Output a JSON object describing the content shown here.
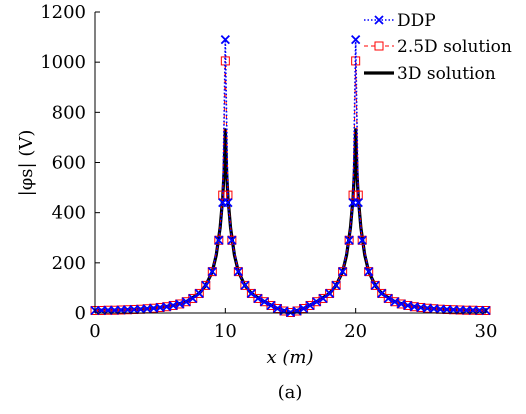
{
  "chart_data": {
    "type": "line",
    "xlabel": "x (m)",
    "ylabel": "|φs| (V)",
    "caption": "(a)",
    "xlim": [
      0,
      30
    ],
    "ylim": [
      0,
      1200
    ],
    "xticks": [
      0,
      10,
      20,
      30
    ],
    "yticks": [
      0,
      200,
      400,
      600,
      800,
      1000,
      1200
    ],
    "grid": false,
    "legend_placement": "top-right",
    "colors": {
      "ddp": "#0000ff",
      "solution_2_5d": "#ff0000",
      "solution_3d": "#000000"
    },
    "series": [
      {
        "name": "DDP",
        "style": "dotted-x-markers",
        "x": [
          0,
          0.5,
          1,
          1.5,
          2,
          2.5,
          3,
          3.5,
          4,
          4.5,
          5,
          5.5,
          6,
          6.5,
          7,
          7.5,
          8,
          8.5,
          9,
          9.5,
          9.8,
          10,
          10.2,
          10.5,
          11,
          11.5,
          12,
          12.5,
          13,
          13.5,
          14,
          14.5,
          15,
          15.5,
          16,
          16.5,
          17,
          17.5,
          18,
          18.5,
          19,
          19.5,
          19.8,
          20,
          20.2,
          20.5,
          21,
          21.5,
          22,
          22.5,
          23,
          23.5,
          24,
          24.5,
          25,
          25.5,
          26,
          26.5,
          27,
          27.5,
          28,
          28.5,
          29,
          29.5,
          30
        ],
        "y": [
          10,
          10,
          11,
          11,
          12,
          13,
          14,
          15,
          17,
          19,
          22,
          25,
          30,
          36,
          45,
          58,
          78,
          110,
          165,
          290,
          440,
          1090,
          440,
          290,
          165,
          110,
          78,
          58,
          45,
          30,
          18,
          8,
          2,
          8,
          18,
          30,
          45,
          58,
          78,
          110,
          165,
          290,
          440,
          1090,
          440,
          290,
          165,
          110,
          78,
          58,
          45,
          36,
          30,
          25,
          22,
          19,
          17,
          15,
          14,
          13,
          12,
          11,
          11,
          10,
          10
        ]
      },
      {
        "name": "2.5D solution",
        "style": "dashed-square-markers",
        "x": [
          0,
          0.5,
          1,
          1.5,
          2,
          2.5,
          3,
          3.5,
          4,
          4.5,
          5,
          5.5,
          6,
          6.5,
          7,
          7.5,
          8,
          8.5,
          9,
          9.5,
          9.8,
          10,
          10.2,
          10.5,
          11,
          11.5,
          12,
          12.5,
          13,
          13.5,
          14,
          14.5,
          15,
          15.5,
          16,
          16.5,
          17,
          17.5,
          18,
          18.5,
          19,
          19.5,
          19.8,
          20,
          20.2,
          20.5,
          21,
          21.5,
          22,
          22.5,
          23,
          23.5,
          24,
          24.5,
          25,
          25.5,
          26,
          26.5,
          27,
          27.5,
          28,
          28.5,
          29,
          29.5,
          30
        ],
        "y": [
          10,
          10,
          11,
          11,
          12,
          13,
          14,
          15,
          17,
          19,
          22,
          25,
          30,
          36,
          45,
          58,
          78,
          110,
          165,
          290,
          470,
          1005,
          470,
          290,
          165,
          110,
          78,
          58,
          45,
          30,
          18,
          8,
          2,
          8,
          18,
          30,
          45,
          58,
          78,
          110,
          165,
          290,
          470,
          1005,
          470,
          290,
          165,
          110,
          78,
          58,
          45,
          36,
          30,
          25,
          22,
          19,
          17,
          15,
          14,
          13,
          12,
          11,
          11,
          10,
          10
        ]
      },
      {
        "name": "3D solution",
        "style": "solid-thick",
        "x": [
          0,
          1,
          2,
          3,
          4,
          5,
          6,
          7,
          8,
          8.5,
          9,
          9.3,
          9.6,
          9.8,
          9.9,
          10,
          10.1,
          10.2,
          10.4,
          10.7,
          11,
          11.5,
          12,
          13,
          14,
          15,
          16,
          17,
          18,
          18.5,
          19,
          19.3,
          19.6,
          19.8,
          19.9,
          20,
          20.1,
          20.2,
          20.4,
          20.7,
          21,
          21.5,
          22,
          23,
          24,
          25,
          26,
          27,
          28,
          29,
          30
        ],
        "y": [
          10,
          11,
          12,
          14,
          17,
          22,
          30,
          45,
          78,
          110,
          165,
          230,
          340,
          460,
          560,
          730,
          560,
          460,
          340,
          230,
          165,
          110,
          78,
          45,
          18,
          2,
          18,
          45,
          78,
          110,
          165,
          230,
          340,
          460,
          560,
          730,
          560,
          460,
          340,
          230,
          165,
          110,
          78,
          45,
          30,
          22,
          17,
          14,
          12,
          11,
          10
        ]
      }
    ]
  }
}
